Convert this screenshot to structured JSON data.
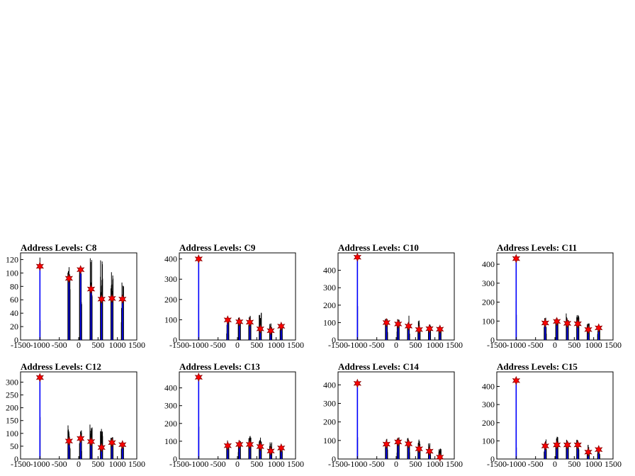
{
  "page": {
    "background": "#ffffff"
  },
  "style": {
    "hist_color": "#000000",
    "fill_color": "#0000ff",
    "marker_color": "#ff0000",
    "marker_edge": "#8b0000"
  },
  "chart_data": [
    {
      "type": "bar",
      "title": "Address Levels: C8",
      "xlim": [
        -1500,
        1500
      ],
      "ylim": [
        0,
        130
      ],
      "yticks": [
        0,
        20,
        40,
        60,
        80,
        100,
        120
      ],
      "xticks": [
        "-1500",
        "-1000",
        "-500",
        "0",
        "500",
        "1000",
        "1500"
      ],
      "peaks": [
        {
          "x": -1000,
          "y": 110,
          "max": 123
        },
        {
          "x": -250,
          "y": 92,
          "max": 126
        },
        {
          "x": 50,
          "y": 105,
          "max": 113
        },
        {
          "x": 320,
          "y": 76,
          "max": 128
        },
        {
          "x": 590,
          "y": 61,
          "max": 126
        },
        {
          "x": 860,
          "y": 62,
          "max": 106
        },
        {
          "x": 1130,
          "y": 61,
          "max": 86
        }
      ]
    },
    {
      "type": "bar",
      "title": "Address Levels: C9",
      "xlim": [
        -1500,
        1500
      ],
      "ylim": [
        0,
        430
      ],
      "yticks": [
        0,
        100,
        200,
        300,
        400
      ],
      "xticks": [
        "-1500",
        "-1000",
        "-500",
        "0",
        "500",
        "1000",
        "1500"
      ],
      "peaks": [
        {
          "x": -1000,
          "y": 400,
          "max": 390
        },
        {
          "x": -250,
          "y": 99,
          "max": 105
        },
        {
          "x": 50,
          "y": 90,
          "max": 115
        },
        {
          "x": 320,
          "y": 88,
          "max": 120
        },
        {
          "x": 590,
          "y": 55,
          "max": 135
        },
        {
          "x": 860,
          "y": 46,
          "max": 85
        },
        {
          "x": 1130,
          "y": 68,
          "max": 75
        }
      ]
    },
    {
      "type": "bar",
      "title": "Address Levels: C10",
      "xlim": [
        -1500,
        1500
      ],
      "ylim": [
        0,
        500
      ],
      "yticks": [
        0,
        100,
        200,
        300,
        400
      ],
      "xticks": [
        "-1500",
        "-1000",
        "-500",
        "0",
        "500",
        "1000",
        "1500"
      ],
      "peaks": [
        {
          "x": -1000,
          "y": 475,
          "max": 460
        },
        {
          "x": -250,
          "y": 100,
          "max": 125
        },
        {
          "x": 50,
          "y": 92,
          "max": 120
        },
        {
          "x": 320,
          "y": 80,
          "max": 140
        },
        {
          "x": 590,
          "y": 60,
          "max": 115
        },
        {
          "x": 860,
          "y": 65,
          "max": 90
        },
        {
          "x": 1130,
          "y": 62,
          "max": 80
        }
      ]
    },
    {
      "type": "bar",
      "title": "Address Levels: C11",
      "xlim": [
        -1500,
        1500
      ],
      "ylim": [
        0,
        460
      ],
      "yticks": [
        0,
        100,
        200,
        300,
        400
      ],
      "xticks": [
        "-1500",
        "-1000",
        "-500",
        "0",
        "500",
        "1000",
        "1500"
      ],
      "peaks": [
        {
          "x": -1000,
          "y": 430,
          "max": 410
        },
        {
          "x": -250,
          "y": 90,
          "max": 125
        },
        {
          "x": 50,
          "y": 98,
          "max": 120
        },
        {
          "x": 320,
          "y": 88,
          "max": 145
        },
        {
          "x": 590,
          "y": 86,
          "max": 140
        },
        {
          "x": 860,
          "y": 55,
          "max": 90
        },
        {
          "x": 1130,
          "y": 64,
          "max": 80
        }
      ]
    },
    {
      "type": "bar",
      "title": "Address Levels: C12",
      "xlim": [
        -1500,
        1500
      ],
      "ylim": [
        0,
        340
      ],
      "yticks": [
        0,
        50,
        100,
        150,
        200,
        250,
        300
      ],
      "xticks": [
        "-1500",
        "-1000",
        "-500",
        "0",
        "500",
        "1000",
        "1500"
      ],
      "peaks": [
        {
          "x": -1000,
          "y": 318,
          "max": 305
        },
        {
          "x": -250,
          "y": 70,
          "max": 135
        },
        {
          "x": 50,
          "y": 80,
          "max": 120
        },
        {
          "x": 320,
          "y": 68,
          "max": 135
        },
        {
          "x": 590,
          "y": 45,
          "max": 120
        },
        {
          "x": 860,
          "y": 64,
          "max": 95
        },
        {
          "x": 1130,
          "y": 56,
          "max": 65
        }
      ]
    },
    {
      "type": "bar",
      "title": "Address Levels: C13",
      "xlim": [
        -1500,
        1500
      ],
      "ylim": [
        0,
        490
      ],
      "yticks": [
        0,
        100,
        200,
        300,
        400
      ],
      "xticks": [
        "-1500",
        "-1000",
        "-500",
        "0",
        "500",
        "1000",
        "1500"
      ],
      "peaks": [
        {
          "x": -1000,
          "y": 460,
          "max": 450
        },
        {
          "x": -250,
          "y": 75,
          "max": 115
        },
        {
          "x": 50,
          "y": 82,
          "max": 120
        },
        {
          "x": 320,
          "y": 82,
          "max": 130
        },
        {
          "x": 590,
          "y": 70,
          "max": 125
        },
        {
          "x": 860,
          "y": 45,
          "max": 95
        },
        {
          "x": 1130,
          "y": 62,
          "max": 75
        }
      ]
    },
    {
      "type": "bar",
      "title": "Address Levels: C14",
      "xlim": [
        -1500,
        1500
      ],
      "ylim": [
        0,
        470
      ],
      "yticks": [
        0,
        100,
        200,
        300,
        400
      ],
      "xticks": [
        "-1500",
        "-1000",
        "-500",
        "0",
        "500",
        "1000",
        "1500"
      ],
      "peaks": [
        {
          "x": -1000,
          "y": 408,
          "max": 395
        },
        {
          "x": -250,
          "y": 80,
          "max": 110
        },
        {
          "x": 50,
          "y": 92,
          "max": 125
        },
        {
          "x": 320,
          "y": 82,
          "max": 115
        },
        {
          "x": 590,
          "y": 55,
          "max": 105
        },
        {
          "x": 860,
          "y": 42,
          "max": 85
        },
        {
          "x": 1130,
          "y": 10,
          "max": 60
        }
      ]
    },
    {
      "type": "bar",
      "title": "Address Levels: C15",
      "xlim": [
        -1500,
        1500
      ],
      "ylim": [
        0,
        480
      ],
      "yticks": [
        0,
        100,
        200,
        300,
        400
      ],
      "xticks": [
        "-1500",
        "-1000",
        "-500",
        "0",
        "500",
        "1000",
        "1500"
      ],
      "peaks": [
        {
          "x": -1000,
          "y": 432,
          "max": 420
        },
        {
          "x": -250,
          "y": 72,
          "max": 120
        },
        {
          "x": 50,
          "y": 78,
          "max": 125
        },
        {
          "x": 320,
          "y": 78,
          "max": 115
        },
        {
          "x": 590,
          "y": 78,
          "max": 110
        },
        {
          "x": 860,
          "y": 38,
          "max": 90
        },
        {
          "x": 1130,
          "y": 52,
          "max": 65
        }
      ]
    }
  ]
}
